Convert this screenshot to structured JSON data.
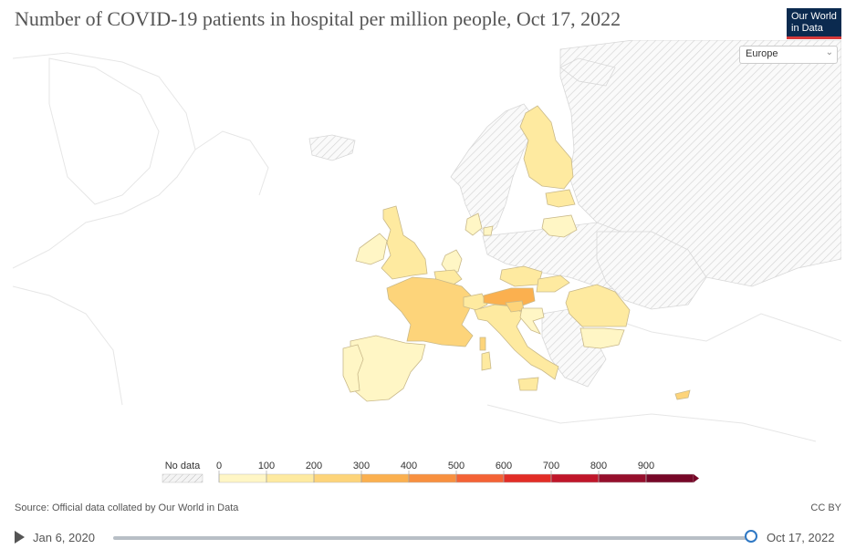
{
  "title": "Number of COVID-19 patients in hospital per million people, Oct 17, 2022",
  "logo": {
    "line1": "Our World",
    "line2": "in Data"
  },
  "region_select": {
    "value": "Europe"
  },
  "legend": {
    "no_data_label": "No data",
    "ticks": [
      "0",
      "100",
      "200",
      "300",
      "400",
      "500",
      "600",
      "700",
      "800",
      "900"
    ],
    "colors": [
      "#fff6c5",
      "#feeaa0",
      "#fdd47a",
      "#fbb04f",
      "#f8903f",
      "#f46235",
      "#e22d26",
      "#c0162a",
      "#960f2c",
      "#770828"
    ]
  },
  "countries": [
    {
      "name": "Finland",
      "bin": 1
    },
    {
      "name": "Estonia",
      "bin": 1
    },
    {
      "name": "Latvia",
      "bin": 0
    },
    {
      "name": "Ireland",
      "bin": 0
    },
    {
      "name": "United Kingdom",
      "bin": 1
    },
    {
      "name": "Netherlands",
      "bin": 0
    },
    {
      "name": "Belgium",
      "bin": 1
    },
    {
      "name": "France",
      "bin": 2
    },
    {
      "name": "Spain",
      "bin": 0
    },
    {
      "name": "Portugal",
      "bin": 0
    },
    {
      "name": "Switzerland",
      "bin": 1
    },
    {
      "name": "Italy",
      "bin": 1
    },
    {
      "name": "Czechia",
      "bin": 1
    },
    {
      "name": "Slovakia",
      "bin": 1
    },
    {
      "name": "Austria",
      "bin": 3
    },
    {
      "name": "Slovenia",
      "bin": 2
    },
    {
      "name": "Croatia",
      "bin": 0
    },
    {
      "name": "Romania",
      "bin": 1
    },
    {
      "name": "Bulgaria",
      "bin": 0
    },
    {
      "name": "Denmark",
      "bin": 0
    },
    {
      "name": "Cyprus",
      "bin": 2
    }
  ],
  "source": "Source: Official data collated by Our World in Data",
  "license": "CC BY",
  "timeline": {
    "start": "Jan 6, 2020",
    "end": "Oct 17, 2022"
  }
}
